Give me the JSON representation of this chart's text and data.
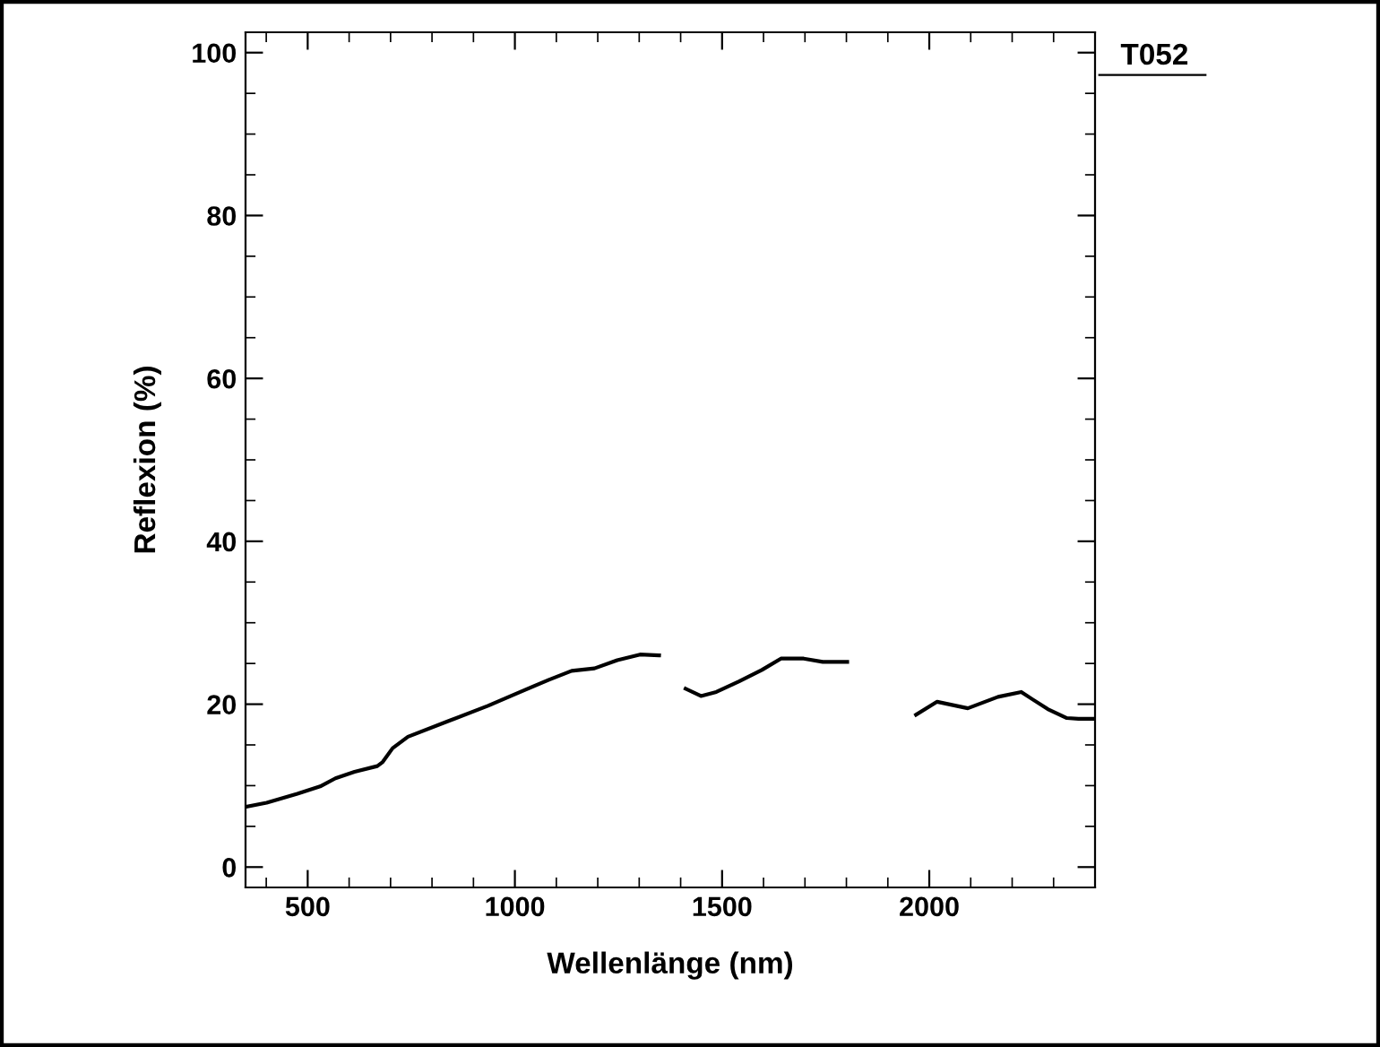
{
  "chart_data": {
    "type": "line",
    "xlabel": "Wellenlänge (nm)",
    "ylabel": "Reflexion (%)",
    "annotations": [
      "T052"
    ],
    "xlim": [
      350,
      2400
    ],
    "ylim": [
      -2.5,
      102.5
    ],
    "xticks": [
      500,
      1000,
      1500,
      2000
    ],
    "yticks": [
      0,
      20,
      40,
      60,
      80,
      100
    ],
    "grid": false,
    "marker": "none",
    "line_style": "solid",
    "series": [
      {
        "color": "#000000",
        "x": [
          350,
          401,
          475,
          530,
          567,
          613,
          668,
          681,
          705,
          742,
          843,
          935,
          1008,
          1082,
          1137,
          1192,
          1247,
          1302,
          1348,
          1380,
          1412,
          1449,
          1486,
          1541,
          1596,
          1642,
          1697,
          1743,
          1802,
          1880,
          1968,
          2019,
          2093,
          2166,
          2222,
          2249,
          2286,
          2332,
          2360,
          2400
        ],
        "values": [
          7.4,
          7.9,
          9.0,
          9.9,
          10.9,
          11.7,
          12.4,
          12.9,
          14.6,
          16.0,
          18.0,
          19.8,
          21.4,
          23.0,
          24.1,
          24.4,
          25.4,
          26.1,
          26.0,
          null,
          21.9,
          21.0,
          21.5,
          22.8,
          24.2,
          25.6,
          25.6,
          25.2,
          25.2,
          null,
          18.7,
          20.3,
          19.5,
          20.9,
          21.5,
          20.6,
          19.4,
          18.3,
          18.2,
          18.2
        ]
      }
    ]
  }
}
